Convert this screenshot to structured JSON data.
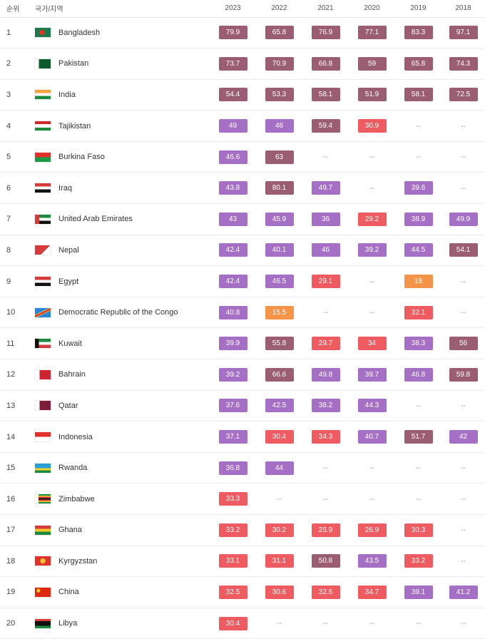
{
  "header": {
    "rank": "순위",
    "country": "국가/지역",
    "years": [
      "2023",
      "2022",
      "2021",
      "2020",
      "2019",
      "2018"
    ]
  },
  "colors": {
    "purple": "#a46fc4",
    "mauve": "#9b5d72",
    "red": "#ee5b60",
    "orange": "#f59349"
  },
  "rows": [
    {
      "rank": "1",
      "name": "Bangladesh",
      "flag": "bangladesh-flag-icon",
      "values": [
        "79.9",
        "65.8",
        "76.9",
        "77.1",
        "83.3",
        "97.1"
      ],
      "colors": [
        "mauve",
        "mauve",
        "mauve",
        "mauve",
        "mauve",
        "mauve"
      ]
    },
    {
      "rank": "2",
      "name": "Pakistan",
      "flag": "pakistan-flag-icon",
      "values": [
        "73.7",
        "70.9",
        "66.8",
        "59",
        "65.8",
        "74.3"
      ],
      "colors": [
        "mauve",
        "mauve",
        "mauve",
        "mauve",
        "mauve",
        "mauve"
      ]
    },
    {
      "rank": "3",
      "name": "India",
      "flag": "india-flag-icon",
      "values": [
        "54.4",
        "53.3",
        "58.1",
        "51.9",
        "58.1",
        "72.5"
      ],
      "colors": [
        "mauve",
        "mauve",
        "mauve",
        "mauve",
        "mauve",
        "mauve"
      ]
    },
    {
      "rank": "4",
      "name": "Tajikistan",
      "flag": "tajikistan-flag-icon",
      "values": [
        "49",
        "46",
        "59.4",
        "30.9",
        "--",
        "--"
      ],
      "colors": [
        "purple",
        "purple",
        "mauve",
        "red",
        null,
        null
      ]
    },
    {
      "rank": "5",
      "name": "Burkina Faso",
      "flag": "burkina-faso-flag-icon",
      "values": [
        "46.6",
        "63",
        "--",
        "--",
        "--",
        "--"
      ],
      "colors": [
        "purple",
        "mauve",
        null,
        null,
        null,
        null
      ]
    },
    {
      "rank": "6",
      "name": "Iraq",
      "flag": "iraq-flag-icon",
      "values": [
        "43.8",
        "80.1",
        "49.7",
        "--",
        "39.6",
        "--"
      ],
      "colors": [
        "purple",
        "mauve",
        "purple",
        null,
        "purple",
        null
      ]
    },
    {
      "rank": "7",
      "name": "United Arab Emirates",
      "flag": "uae-flag-icon",
      "values": [
        "43",
        "45.9",
        "36",
        "29.2",
        "38.9",
        "49.9"
      ],
      "colors": [
        "purple",
        "purple",
        "purple",
        "red",
        "purple",
        "purple"
      ]
    },
    {
      "rank": "8",
      "name": "Nepal",
      "flag": "nepal-flag-icon",
      "values": [
        "42.4",
        "40.1",
        "46",
        "39.2",
        "44.5",
        "54.1"
      ],
      "colors": [
        "purple",
        "purple",
        "purple",
        "purple",
        "purple",
        "mauve"
      ]
    },
    {
      "rank": "9",
      "name": "Egypt",
      "flag": "egypt-flag-icon",
      "values": [
        "42.4",
        "46.5",
        "29.1",
        "--",
        "18",
        "--"
      ],
      "colors": [
        "purple",
        "purple",
        "red",
        null,
        "orange",
        null
      ]
    },
    {
      "rank": "10",
      "name": "Democratic Republic of the Congo",
      "flag": "dr-congo-flag-icon",
      "values": [
        "40.8",
        "15.5",
        "--",
        "--",
        "32.1",
        "--"
      ],
      "colors": [
        "purple",
        "orange",
        null,
        null,
        "red",
        null
      ]
    },
    {
      "rank": "11",
      "name": "Kuwait",
      "flag": "kuwait-flag-icon",
      "values": [
        "39.9",
        "55.8",
        "29.7",
        "34",
        "38.3",
        "56"
      ],
      "colors": [
        "purple",
        "mauve",
        "red",
        "red",
        "purple",
        "mauve"
      ]
    },
    {
      "rank": "12",
      "name": "Bahrain",
      "flag": "bahrain-flag-icon",
      "values": [
        "39.2",
        "66.6",
        "49.8",
        "39.7",
        "46.8",
        "59.8"
      ],
      "colors": [
        "purple",
        "mauve",
        "purple",
        "purple",
        "purple",
        "mauve"
      ]
    },
    {
      "rank": "13",
      "name": "Qatar",
      "flag": "qatar-flag-icon",
      "values": [
        "37.6",
        "42.5",
        "38.2",
        "44.3",
        "--",
        "--"
      ],
      "colors": [
        "purple",
        "purple",
        "purple",
        "purple",
        null,
        null
      ]
    },
    {
      "rank": "14",
      "name": "Indonesia",
      "flag": "indonesia-flag-icon",
      "values": [
        "37.1",
        "30.4",
        "34.3",
        "40.7",
        "51.7",
        "42"
      ],
      "colors": [
        "purple",
        "red",
        "red",
        "purple",
        "mauve",
        "purple"
      ]
    },
    {
      "rank": "15",
      "name": "Rwanda",
      "flag": "rwanda-flag-icon",
      "values": [
        "36.8",
        "44",
        "--",
        "--",
        "--",
        "--"
      ],
      "colors": [
        "purple",
        "purple",
        null,
        null,
        null,
        null
      ]
    },
    {
      "rank": "16",
      "name": "Zimbabwe",
      "flag": "zimbabwe-flag-icon",
      "values": [
        "33.3",
        "--",
        "--",
        "--",
        "--",
        "--"
      ],
      "colors": [
        "red",
        null,
        null,
        null,
        null,
        null
      ]
    },
    {
      "rank": "17",
      "name": "Ghana",
      "flag": "ghana-flag-icon",
      "values": [
        "33.2",
        "30.2",
        "25.9",
        "26.9",
        "30.3",
        "--"
      ],
      "colors": [
        "red",
        "red",
        "red",
        "red",
        "red",
        null
      ]
    },
    {
      "rank": "18",
      "name": "Kyrgyzstan",
      "flag": "kyrgyzstan-flag-icon",
      "values": [
        "33.1",
        "31.1",
        "50.8",
        "43.5",
        "33.2",
        "--"
      ],
      "colors": [
        "red",
        "red",
        "mauve",
        "purple",
        "red",
        null
      ]
    },
    {
      "rank": "19",
      "name": "China",
      "flag": "china-flag-icon",
      "values": [
        "32.5",
        "30.6",
        "32.6",
        "34.7",
        "39.1",
        "41.2"
      ],
      "colors": [
        "red",
        "red",
        "red",
        "red",
        "purple",
        "purple"
      ]
    },
    {
      "rank": "20",
      "name": "Libya",
      "flag": "libya-flag-icon",
      "values": [
        "30.4",
        "--",
        "--",
        "--",
        "--",
        "--"
      ],
      "colors": [
        "red",
        null,
        null,
        null,
        null,
        null
      ]
    }
  ]
}
